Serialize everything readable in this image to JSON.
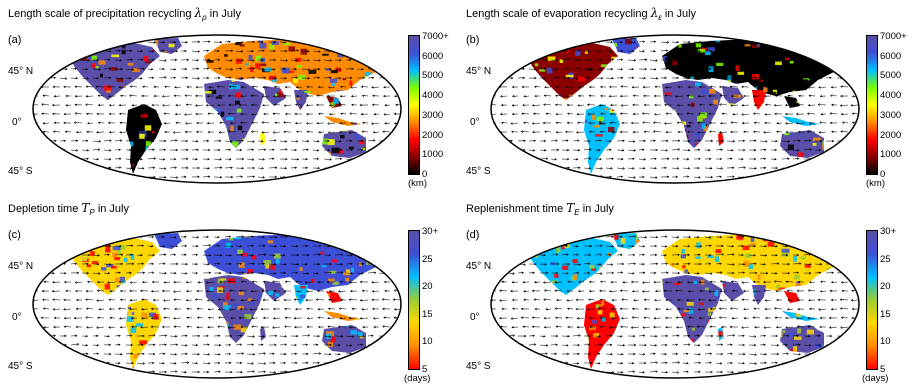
{
  "panels": [
    {
      "tag": "(a)",
      "title_prefix": "Length scale of precipitation recycling",
      "symbol": "λ",
      "symbol_sub": "ρ",
      "title_suffix": "in July",
      "colormap": "rainbow_dark",
      "ticks": [
        "7000+",
        "6000",
        "5000",
        "4000",
        "3000",
        "2000",
        "1000",
        "0"
      ],
      "unit": "(km)"
    },
    {
      "tag": "(b)",
      "title_prefix": "Length scale of evaporation recycling",
      "symbol": "λ",
      "symbol_sub": "ε",
      "title_suffix": "in July",
      "colormap": "rainbow_dark",
      "ticks": [
        "7000+",
        "6000",
        "5000",
        "4000",
        "3000",
        "2000",
        "1000",
        "0"
      ],
      "unit": "(km)"
    },
    {
      "tag": "(c)",
      "title_prefix": "Depletion time",
      "symbol": "T",
      "symbol_sub": "P",
      "title_suffix": "in July",
      "colormap": "rainbow_time",
      "ticks": [
        "30+",
        "25",
        "20",
        "15",
        "10",
        "5"
      ],
      "unit": "(days)"
    },
    {
      "tag": "(d)",
      "title_prefix": "Replenishment time",
      "symbol": "T",
      "symbol_sub": "E",
      "title_suffix": "in July",
      "colormap": "rainbow_time",
      "ticks": [
        "30+",
        "25",
        "20",
        "15",
        "10",
        "5"
      ],
      "unit": "(days)"
    }
  ],
  "lat_labels": {
    "north": "45° N",
    "equator": "0°",
    "south": "45° S"
  },
  "colors": {
    "ocean": "#ffffff",
    "arrows": "#000000",
    "sahara_interior": "#5a4fa8",
    "rainbow_dark": [
      "#000000",
      "#8b0000",
      "#ff0000",
      "#ff8c00",
      "#ffff00",
      "#7cfc00",
      "#00c0ff",
      "#3d4fd6",
      "#5a4fa8"
    ],
    "rainbow_time": [
      "#ff0000",
      "#ff8c00",
      "#ffd700",
      "#9acd32",
      "#00c0ff",
      "#3d4fd6",
      "#5a4fa8"
    ]
  }
}
